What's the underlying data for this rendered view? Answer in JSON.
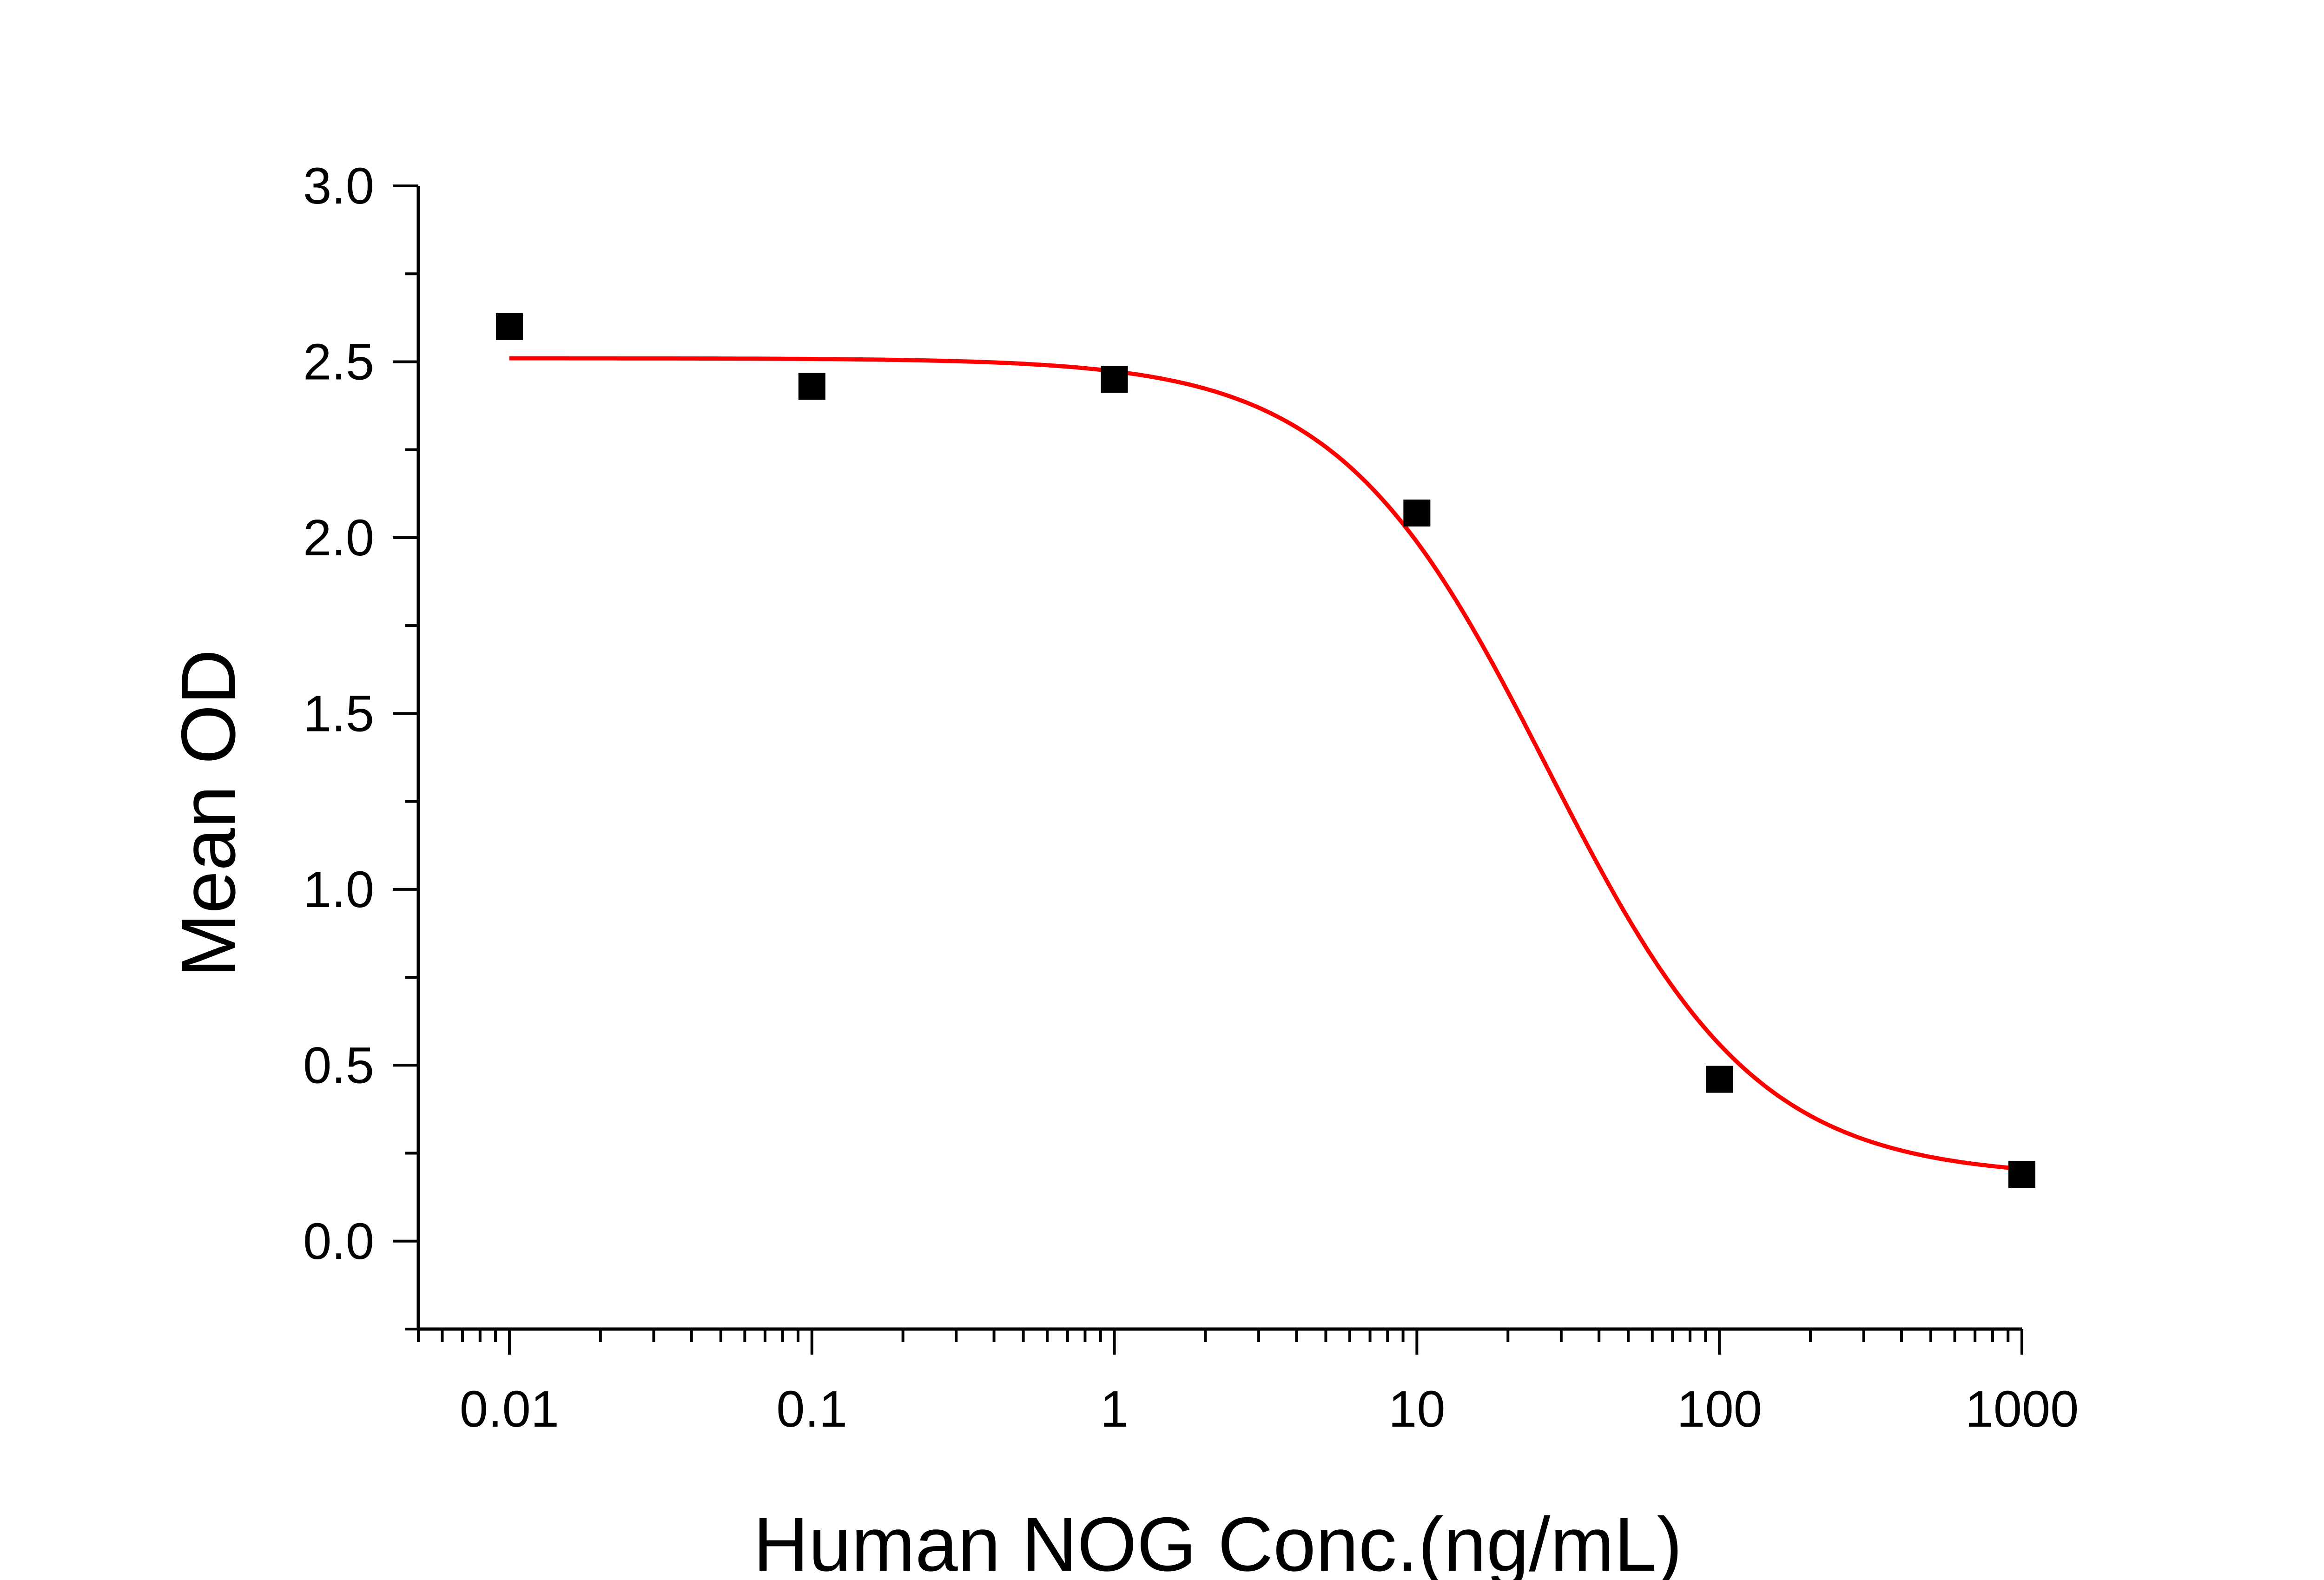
{
  "chart_data": {
    "type": "scatter",
    "title": "",
    "xlabel": "Human NOG Conc.(ng/mL)",
    "ylabel": "Mean OD",
    "x_scale": "log",
    "xlim": [
      0.005,
      1000
    ],
    "ylim": [
      -0.25,
      3.0
    ],
    "x_ticks": [
      0.01,
      0.1,
      1,
      10,
      100,
      1000
    ],
    "x_tick_labels": [
      "0.01",
      "0.1",
      "1",
      "10",
      "100",
      "1000"
    ],
    "y_ticks": [
      0.0,
      0.5,
      1.0,
      1.5,
      2.0,
      2.5,
      3.0
    ],
    "y_tick_labels": [
      "0.0",
      "0.5",
      "1.0",
      "1.5",
      "2.0",
      "2.5",
      "3.0"
    ],
    "grid": false,
    "legend": "none",
    "series": [
      {
        "type": "scatter",
        "marker": "square",
        "color": "#000000",
        "x": [
          0.01,
          0.1,
          1,
          10,
          100,
          1000
        ],
        "y": [
          2.6,
          2.43,
          2.45,
          2.07,
          0.46,
          0.19
        ]
      },
      {
        "type": "line",
        "fit": "4PL",
        "color": "#ff0000",
        "top": 2.51,
        "bottom": 0.18,
        "ec50": 27,
        "hill": 1.25,
        "x_range": [
          0.01,
          1000
        ]
      }
    ]
  }
}
